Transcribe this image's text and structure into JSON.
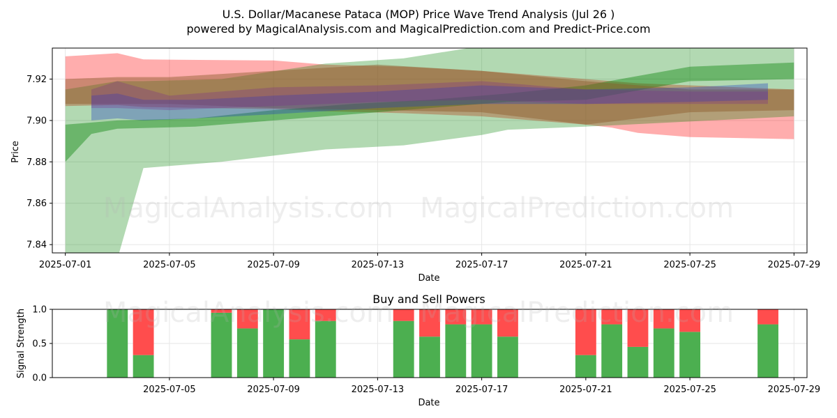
{
  "title_line1": "U.S. Dollar/Macanese Pataca (MOP) Price Wave Trend Analysis (Jul 26 )",
  "title_line2": "powered by MagicalAnalysis.com and MagicalPrediction.com and Predict-Price.com",
  "watermark": "MagicalAnalysis.com   MagicalPrediction.com",
  "chart_data": [
    {
      "type": "area",
      "title": "",
      "xlabel": "Date",
      "ylabel": "Price",
      "x_range": [
        "2025-06-30T12:00",
        "2025-07-29T12:00"
      ],
      "ylim": [
        7.836,
        7.935
      ],
      "x_ticks": [
        "2025-07-01",
        "2025-07-05",
        "2025-07-09",
        "2025-07-13",
        "2025-07-17",
        "2025-07-21",
        "2025-07-25",
        "2025-07-29"
      ],
      "y_ticks": [
        7.84,
        7.86,
        7.88,
        7.9,
        7.92
      ],
      "y_tick_labels": [
        "7.84",
        "7.86",
        "7.88",
        "7.90",
        "7.92"
      ],
      "grid": true,
      "series": [
        {
          "name": "red band",
          "color": "#ff0000",
          "x": [
            "2025-07-01",
            "2025-07-03",
            "2025-07-04",
            "2025-07-09",
            "2025-07-11",
            "2025-07-14",
            "2025-07-17",
            "2025-07-21",
            "2025-07-22",
            "2025-07-23",
            "2025-07-25",
            "2025-07-29"
          ],
          "upper": [
            7.931,
            7.9325,
            7.9295,
            7.929,
            7.927,
            7.926,
            7.924,
            7.92,
            7.919,
            7.918,
            7.917,
            7.915
          ],
          "lower": [
            7.907,
            7.9075,
            7.9065,
            7.9055,
            7.9045,
            7.9035,
            7.902,
            7.898,
            7.8965,
            7.894,
            7.892,
            7.891
          ]
        },
        {
          "name": "green band (wide)",
          "color": "#008000",
          "x": [
            "2025-07-01",
            "2025-07-02",
            "2025-07-03",
            "2025-07-04",
            "2025-07-07",
            "2025-07-11",
            "2025-07-14",
            "2025-07-17",
            "2025-07-18",
            "2025-07-21",
            "2025-07-29"
          ],
          "upper": [
            7.915,
            7.917,
            7.919,
            7.919,
            7.92,
            7.9275,
            7.93,
            7.936,
            7.936,
            7.936,
            7.9355
          ],
          "lower": [
            7.835,
            7.832,
            7.833,
            7.877,
            7.88,
            7.886,
            7.888,
            7.893,
            7.8955,
            7.897,
            7.902
          ]
        },
        {
          "name": "green band (rising)",
          "color": "#008000",
          "x": [
            "2025-07-01",
            "2025-07-02",
            "2025-07-03",
            "2025-07-06",
            "2025-07-09",
            "2025-07-12",
            "2025-07-15",
            "2025-07-18",
            "2025-07-21",
            "2025-07-25",
            "2025-07-29"
          ],
          "upper": [
            7.898,
            7.899,
            7.9,
            7.901,
            7.905,
            7.908,
            7.91,
            7.913,
            7.917,
            7.926,
            7.928
          ],
          "lower": [
            7.88,
            7.8935,
            7.896,
            7.897,
            7.9,
            7.903,
            7.906,
            7.909,
            7.91,
            7.919,
            7.92
          ]
        },
        {
          "name": "brown band",
          "color": "#8b5a2b",
          "x": [
            "2025-07-01",
            "2025-07-03",
            "2025-07-05",
            "2025-07-09",
            "2025-07-13",
            "2025-07-17",
            "2025-07-21",
            "2025-07-25",
            "2025-07-29"
          ],
          "upper": [
            7.92,
            7.921,
            7.921,
            7.924,
            7.927,
            7.924,
            7.919,
            7.915,
            7.915
          ],
          "lower": [
            7.908,
            7.908,
            7.908,
            7.906,
            7.905,
            7.904,
            7.898,
            7.904,
            7.905
          ]
        },
        {
          "name": "blue band",
          "color": "#1f3fbf",
          "x": [
            "2025-07-02",
            "2025-07-03",
            "2025-07-04",
            "2025-07-06",
            "2025-07-09",
            "2025-07-13",
            "2025-07-17",
            "2025-07-21",
            "2025-07-25",
            "2025-07-28"
          ],
          "upper": [
            7.912,
            7.913,
            7.91,
            7.91,
            7.912,
            7.914,
            7.917,
            7.915,
            7.916,
            7.918
          ],
          "lower": [
            7.9,
            7.901,
            7.9,
            7.901,
            7.903,
            7.906,
            7.908,
            7.908,
            7.909,
            7.91
          ]
        },
        {
          "name": "purple band",
          "color": "#7a2a8a",
          "x": [
            "2025-07-02",
            "2025-07-03",
            "2025-07-05",
            "2025-07-09",
            "2025-07-13",
            "2025-07-17",
            "2025-07-21",
            "2025-07-25",
            "2025-07-28"
          ],
          "upper": [
            7.915,
            7.919,
            7.912,
            7.916,
            7.917,
            7.919,
            7.915,
            7.914,
            7.914
          ],
          "lower": [
            7.906,
            7.906,
            7.905,
            7.907,
            7.909,
            7.91,
            7.908,
            7.908,
            7.908
          ]
        }
      ]
    },
    {
      "type": "bar",
      "title": "Buy and Sell Powers",
      "xlabel": "Date",
      "ylabel": "Signal Strength",
      "x_range": [
        "2025-06-30T12:00",
        "2025-07-29T12:00"
      ],
      "ylim": [
        0,
        1
      ],
      "y_ticks": [
        0,
        0.5,
        1.0
      ],
      "y_tick_labels": [
        "0.0",
        "0.5",
        "1.0"
      ],
      "x_ticks": [
        "2025-07-05",
        "2025-07-09",
        "2025-07-13",
        "2025-07-17",
        "2025-07-21",
        "2025-07-25",
        "2025-07-29"
      ],
      "grid": true,
      "stacked": true,
      "colors": {
        "buy": "#4caf50",
        "sell": "#ff4d4d"
      },
      "categories": [
        "2025-07-03",
        "2025-07-04",
        "2025-07-07",
        "2025-07-08",
        "2025-07-09",
        "2025-07-10",
        "2025-07-11",
        "2025-07-14",
        "2025-07-15",
        "2025-07-16",
        "2025-07-17",
        "2025-07-18",
        "2025-07-21",
        "2025-07-22",
        "2025-07-23",
        "2025-07-24",
        "2025-07-25",
        "2025-07-28"
      ],
      "series": [
        {
          "name": "Buy",
          "values": [
            1.0,
            0.33,
            0.95,
            0.72,
            1.0,
            0.56,
            0.83,
            0.83,
            0.6,
            0.78,
            0.78,
            0.6,
            0.33,
            0.78,
            0.45,
            0.72,
            0.67,
            0.78
          ]
        },
        {
          "name": "Sell",
          "values": [
            0.0,
            0.67,
            0.05,
            0.28,
            0.0,
            0.44,
            0.17,
            0.17,
            0.4,
            0.22,
            0.22,
            0.4,
            0.67,
            0.22,
            0.55,
            0.28,
            0.33,
            0.22
          ]
        }
      ]
    }
  ]
}
